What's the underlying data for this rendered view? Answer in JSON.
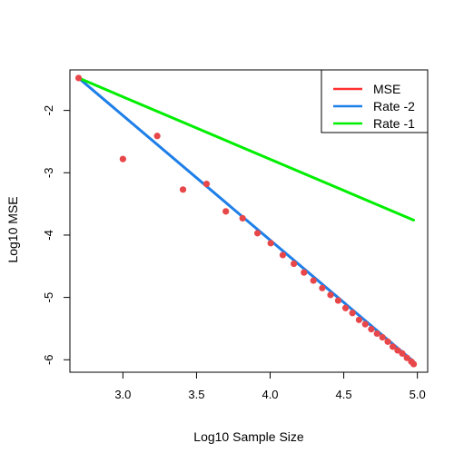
{
  "chart_data": {
    "type": "scatter",
    "title": "",
    "xlabel": "Log10 Sample Size",
    "ylabel": "Log10 MSE",
    "xlim": [
      2.64,
      5.07
    ],
    "ylim": [
      -6.2,
      -1.35
    ],
    "xticks": [
      3.0,
      3.5,
      4.0,
      4.5,
      5.0
    ],
    "xtick_labels": [
      "3.0",
      "3.5",
      "4.0",
      "4.5",
      "5.0"
    ],
    "yticks": [
      -6,
      -5,
      -4,
      -3,
      -2
    ],
    "ytick_labels": [
      "-6",
      "-5",
      "-4",
      "-3",
      "-2"
    ],
    "grid": false,
    "legend": {
      "position": "top-right",
      "entries": [
        {
          "label": "MSE",
          "color": "#ff3030"
        },
        {
          "label": "Rate -2",
          "color": "#1e7fe8"
        },
        {
          "label": "Rate -1",
          "color": "#00ee00"
        }
      ]
    },
    "series": [
      {
        "name": "MSE",
        "kind": "points",
        "color": "#e8474a",
        "x": [
          2.699,
          3.0,
          3.233,
          3.408,
          3.568,
          3.699,
          3.813,
          3.914,
          4.004,
          4.086,
          4.161,
          4.23,
          4.294,
          4.354,
          4.41,
          4.462,
          4.512,
          4.559,
          4.604,
          4.646,
          4.687,
          4.726,
          4.763,
          4.799,
          4.833,
          4.866,
          4.898,
          4.929,
          4.959,
          4.975
        ],
        "y": [
          -1.48,
          -2.78,
          -2.41,
          -3.27,
          -3.18,
          -3.62,
          -3.73,
          -3.97,
          -4.13,
          -4.32,
          -4.46,
          -4.6,
          -4.73,
          -4.85,
          -4.96,
          -5.05,
          -5.17,
          -5.25,
          -5.36,
          -5.43,
          -5.51,
          -5.58,
          -5.64,
          -5.71,
          -5.79,
          -5.85,
          -5.9,
          -5.97,
          -6.03,
          -6.07
        ]
      },
      {
        "name": "Rate -2",
        "kind": "line",
        "color": "#1e7fe8",
        "x": [
          2.699,
          4.975
        ],
        "y": [
          -1.48,
          -6.03
        ]
      },
      {
        "name": "Rate -1",
        "kind": "line",
        "color": "#00ee00",
        "x": [
          2.699,
          4.975
        ],
        "y": [
          -1.48,
          -3.76
        ]
      }
    ]
  }
}
